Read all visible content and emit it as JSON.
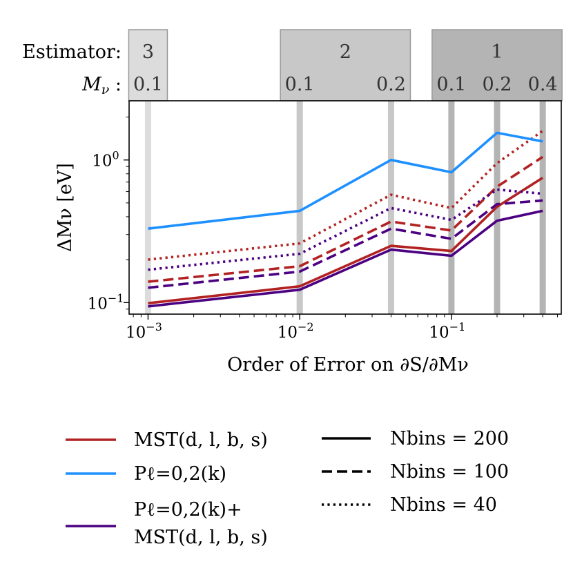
{
  "chart_data": {
    "type": "line",
    "title": "",
    "xlabel": "Order of Error on ∂S/∂Mν",
    "ylabel": "ΔMν [eV]",
    "xscale": "log",
    "yscale": "log",
    "xlim": [
      0.00075,
      0.53
    ],
    "ylim": [
      0.083,
      2.6
    ],
    "grid": false,
    "legend_position": "below",
    "x": [
      0.001,
      0.01,
      0.04,
      0.1,
      0.2,
      0.4
    ],
    "x_ticks": [
      {
        "value": 0.001,
        "base": "10",
        "exp": "−3"
      },
      {
        "value": 0.01,
        "base": "10",
        "exp": "−2"
      },
      {
        "value": 0.1,
        "base": "10",
        "exp": "−1"
      }
    ],
    "y_ticks": [
      {
        "value": 0.1,
        "base": "10",
        "exp": "−1"
      },
      {
        "value": 1,
        "base": "10",
        "exp": "0"
      }
    ],
    "series": [
      {
        "name": "MST(d, l, b, s)",
        "estimator": "mst",
        "nbins": "200",
        "color": "#b22222",
        "dash": "solid",
        "values": [
          0.099,
          0.13,
          0.25,
          0.23,
          0.47,
          0.75
        ]
      },
      {
        "name": "MST(d, l, b, s)",
        "estimator": "mst",
        "nbins": "100",
        "color": "#b22222",
        "dash": "dashed",
        "values": [
          0.14,
          0.18,
          0.37,
          0.32,
          0.65,
          1.05
        ]
      },
      {
        "name": "MST(d, l, b, s)",
        "estimator": "mst",
        "nbins": "40",
        "color": "#b22222",
        "dash": "dotted",
        "values": [
          0.2,
          0.26,
          0.57,
          0.46,
          0.95,
          1.6
        ]
      },
      {
        "name": "Pℓ=0,2(k)",
        "estimator": "pk",
        "nbins": "200",
        "color": "#1e90ff",
        "dash": "solid",
        "values": [
          0.33,
          0.44,
          1.0,
          0.82,
          1.55,
          1.35
        ]
      },
      {
        "name": "Pℓ=0,2(k)+ MST(d, l, b, s)",
        "estimator": "combined",
        "nbins": "200",
        "color": "#4b0082",
        "dash": "solid",
        "values": [
          0.094,
          0.123,
          0.235,
          0.213,
          0.375,
          0.44
        ]
      },
      {
        "name": "Pℓ=0,2(k)+ MST(d, l, b, s)",
        "estimator": "combined",
        "nbins": "100",
        "color": "#4b0082",
        "dash": "dashed",
        "values": [
          0.127,
          0.165,
          0.33,
          0.28,
          0.49,
          0.52
        ]
      },
      {
        "name": "Pℓ=0,2(k)+ MST(d, l, b, s)",
        "estimator": "combined",
        "nbins": "40",
        "color": "#4b0082",
        "dash": "dotted",
        "values": [
          0.17,
          0.22,
          0.46,
          0.38,
          0.62,
          0.58
        ]
      }
    ],
    "highlight_lines": [
      {
        "x": 0.001,
        "shade": "#dcdcdc"
      },
      {
        "x": 0.01,
        "shade": "#c8c8c8"
      },
      {
        "x": 0.04,
        "shade": "#c8c8c8"
      },
      {
        "x": 0.1,
        "shade": "#b4b4b4"
      },
      {
        "x": 0.2,
        "shade": "#b4b4b4"
      },
      {
        "x": 0.4,
        "shade": "#b4b4b4"
      }
    ],
    "header": {
      "estimator_label": "Estimator:",
      "mnu_label": "Mν :",
      "groups": [
        {
          "name": "3",
          "shade": "#dcdcdc",
          "x_from": 0.001,
          "x_to": 0.001,
          "values": [
            {
              "label": "0.1",
              "x": 0.001
            }
          ]
        },
        {
          "name": "2",
          "shade": "#c8c8c8",
          "x_from": 0.01,
          "x_to": 0.04,
          "values": [
            {
              "label": "0.1",
              "x": 0.01
            },
            {
              "label": "0.2",
              "x": 0.04
            }
          ]
        },
        {
          "name": "1",
          "shade": "#b4b4b4",
          "x_from": 0.1,
          "x_to": 0.4,
          "values": [
            {
              "label": "0.1",
              "x": 0.1
            },
            {
              "label": "0.2",
              "x": 0.2
            },
            {
              "label": "0.4",
              "x": 0.4
            }
          ]
        }
      ]
    },
    "legend": {
      "estimators": [
        {
          "key": "mst",
          "label_lines": [
            "MST(d, l, b, s)"
          ],
          "color": "#b22222"
        },
        {
          "key": "pk",
          "label_lines": [
            "Pℓ=0,2(k)"
          ],
          "color": "#1e90ff"
        },
        {
          "key": "combined",
          "label_lines": [
            "Pℓ=0,2(k)+",
            "MST(d, l, b, s)"
          ],
          "color": "#4b0082"
        }
      ],
      "nbins": [
        {
          "label": "Nbins = 200",
          "dash": "solid"
        },
        {
          "label": "Nbins = 100",
          "dash": "dashed"
        },
        {
          "label": "Nbins = 40",
          "dash": "dotted"
        }
      ]
    }
  }
}
